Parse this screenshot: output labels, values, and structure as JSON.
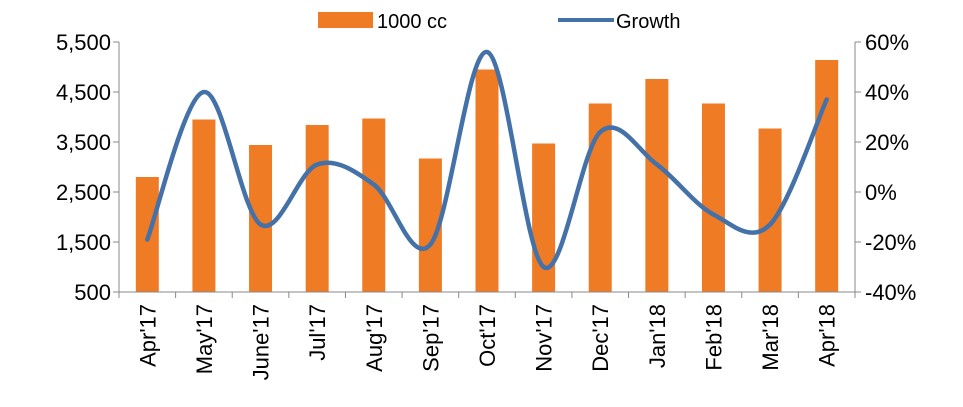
{
  "chart_data": {
    "type": "bar",
    "categories": [
      "Apr'17",
      "May'17",
      "June'17",
      "Jul'17",
      "Aug'17",
      "Sep'17",
      "Oct'17",
      "Nov'17",
      "Dec'17",
      "Jan'18",
      "Feb'18",
      "Mar'18",
      "Apr'18"
    ],
    "series": [
      {
        "name": "1000 cc",
        "type": "bar",
        "axis": "left",
        "color": "#F07B25",
        "values": [
          2800,
          3950,
          3440,
          3840,
          3970,
          3170,
          4950,
          3470,
          4270,
          4760,
          4270,
          3770,
          5140
        ]
      },
      {
        "name": "Growth",
        "type": "line",
        "axis": "right",
        "color": "#4472A8",
        "smooth": true,
        "values": [
          -0.19,
          0.4,
          -0.13,
          0.11,
          0.03,
          -0.21,
          0.56,
          -0.3,
          0.24,
          0.11,
          -0.09,
          -0.13,
          0.37
        ]
      }
    ],
    "y_left": {
      "min": 500,
      "max": 5500,
      "ticks": [
        500,
        1500,
        2500,
        3500,
        4500,
        5500
      ],
      "tick_labels": [
        "500",
        "1,500",
        "2,500",
        "3,500",
        "4,500",
        "5,500"
      ]
    },
    "y_right": {
      "min": -0.4,
      "max": 0.6,
      "ticks": [
        -0.4,
        -0.2,
        0,
        0.2,
        0.4,
        0.6
      ],
      "tick_labels": [
        "-40%",
        "-20%",
        "0%",
        "20%",
        "40%",
        "60%"
      ]
    },
    "legend": {
      "position": "top",
      "items": [
        "1000 cc",
        "Growth"
      ]
    },
    "grid": false,
    "title": "",
    "xlabel": "",
    "ylabel": ""
  }
}
